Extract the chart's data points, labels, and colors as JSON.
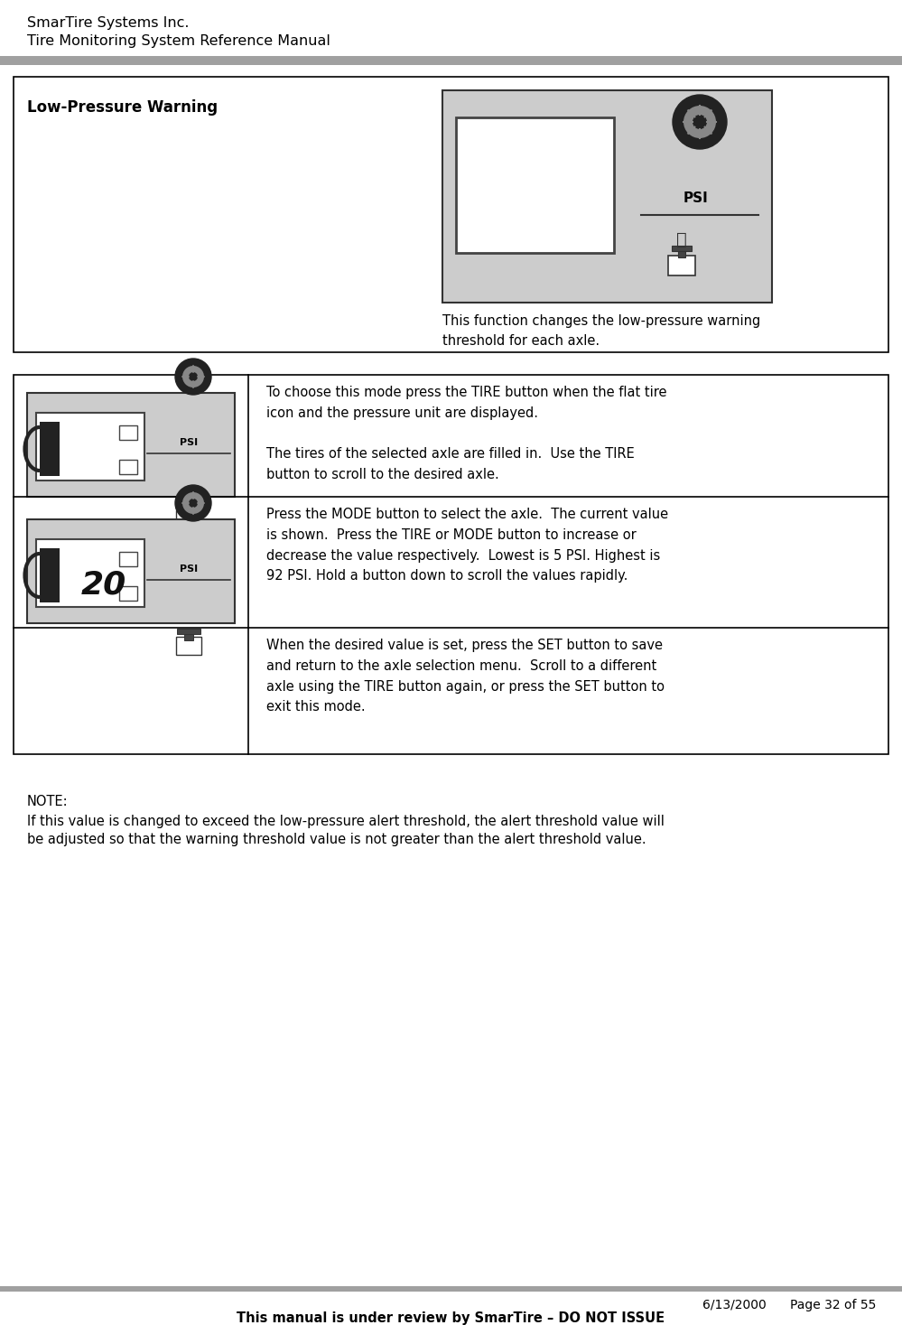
{
  "page_width": 9.99,
  "page_height": 14.67,
  "bg_color": "#ffffff",
  "header_title1": "SmarTire Systems Inc.",
  "header_title2": "Tire Monitoring System Reference Manual",
  "header_font_size": 11.5,
  "section_title": "Low-Pressure Warning",
  "section_title_font_size": 12,
  "description_text": "This function changes the low-pressure warning\nthreshold for each axle.",
  "row1_text": "To choose this mode press the TIRE button when the flat tire\nicon and the pressure unit are displayed.\n\nThe tires of the selected axle are filled in.  Use the TIRE\nbutton to scroll to the desired axle.",
  "row2_text": "Press the MODE button to select the axle.  The current value\nis shown.  Press the TIRE or MODE button to increase or\ndecrease the value respectively.  Lowest is 5 PSI. Highest is\n92 PSI. Hold a button down to scroll the values rapidly.",
  "row3_text": "When the desired value is set, press the SET button to save\nand return to the axle selection menu.  Scroll to a different\naxle using the TIRE button again, or press the SET button to\nexit this mode.",
  "note_title": "NOTE:",
  "note_text1": "If this value is changed to exceed the low-pressure alert threshold, the alert threshold value will",
  "note_text2": "be adjusted so that the warning threshold value is not greater than the alert threshold value.",
  "footer_date": "6/13/2000",
  "footer_page": "Page 32 of 55",
  "footer_note": "This manual is under review by SmarTire – DO NOT ISSUE",
  "display_bg": "#cccccc",
  "text_color": "#000000",
  "font_size_body": 10.5,
  "gray_bar": "#a0a0a0"
}
